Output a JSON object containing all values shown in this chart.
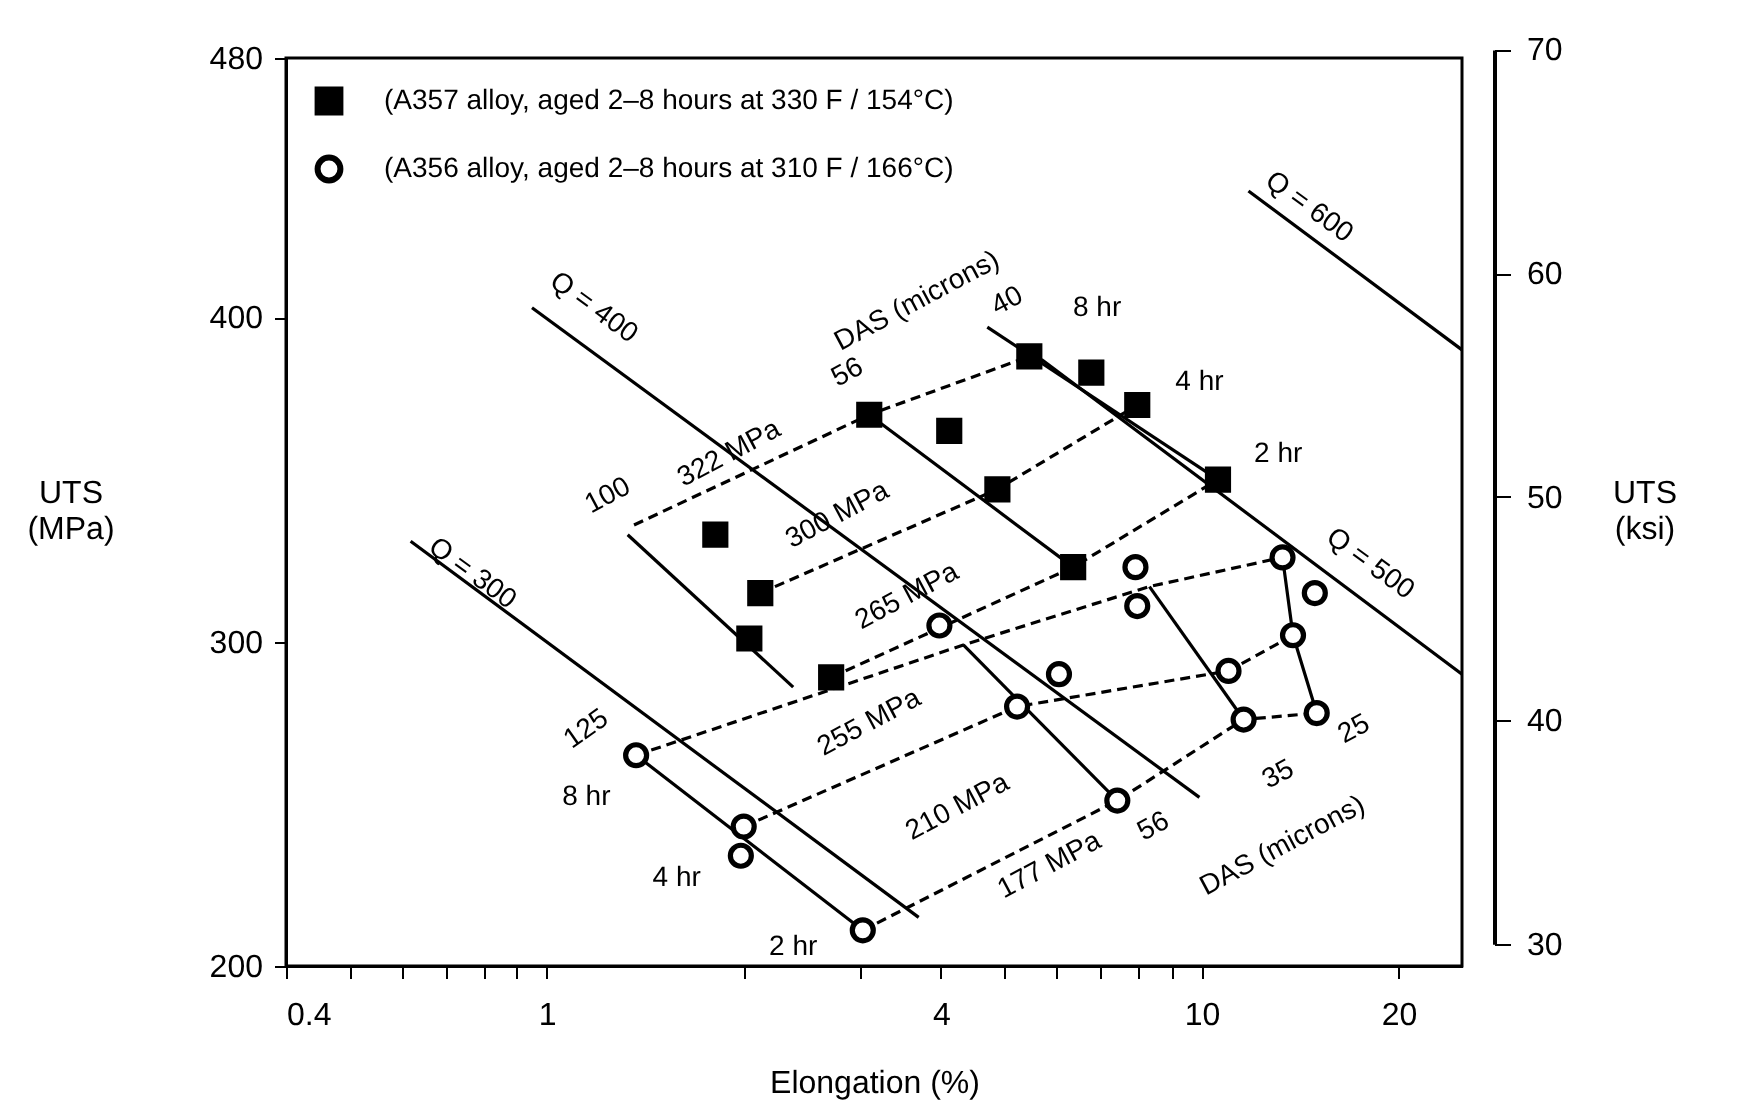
{
  "chart_data": {
    "type": "scatter",
    "xlabel": "Elongation (%)",
    "ylabel": "UTS (MPa)",
    "y2label": "UTS (ksi)",
    "log": "x",
    "grid": false,
    "legend": "top left",
    "xlim": [
      0.4,
      25
    ],
    "xticks": [
      0.4,
      {
        "value": 0.5,
        "label": null
      },
      {
        "value": 0.6,
        "label": null
      },
      {
        "value": 0.7,
        "label": null
      },
      {
        "value": 0.8,
        "label": null
      },
      {
        "value": 0.9,
        "label": null
      },
      1,
      {
        "value": 2,
        "label": null
      },
      {
        "value": 3,
        "label": null
      },
      4,
      {
        "value": 5,
        "label": null
      },
      {
        "value": 6,
        "label": null
      },
      {
        "value": 7,
        "label": null
      },
      {
        "value": 8,
        "label": null
      },
      {
        "value": 9,
        "label": null
      },
      10,
      20
    ],
    "ylim": [
      200,
      480
    ],
    "yticks": [
      200,
      300,
      400,
      480
    ],
    "y2lim": [
      30,
      70
    ],
    "y2ticks": [
      30,
      40,
      50,
      60,
      70
    ],
    "series": [
      {
        "name": "(A357 alloy, aged 2–8 hours at 330 F / 154°C)",
        "marker": "square",
        "color": "#000000",
        "x": [
          3.11,
          4.12,
          4.88,
          1.81,
          2.12,
          2.04,
          2.72,
          5.46,
          6.79,
          7.98,
          10.6,
          6.37
        ],
        "values": [
          370,
          365,
          347,
          333,
          315,
          301,
          289,
          388,
          383,
          373,
          350,
          323
        ]
      },
      {
        "name": "(A356 alloy, aged 2–8 hours at 310 F / 166°C)",
        "marker": "circle",
        "color": "#000000",
        "x": [
          1.37,
          2.0,
          1.98,
          3.04,
          3.98,
          5.23,
          6.06,
          7.44,
          7.93,
          7.98,
          11.0,
          11.6,
          13.3,
          14.9,
          13.8,
          15.0
        ],
        "values": [
          265,
          243,
          234,
          211,
          305,
          280,
          290,
          251,
          323,
          311,
          291,
          276,
          326,
          315,
          302,
          278
        ]
      },
      {
        "type": "line",
        "line_style": "solid",
        "color": "#000000",
        "x": [
          0.62,
          3.7
        ],
        "values": [
          331,
          215
        ]
      },
      {
        "type": "line",
        "line_style": "solid",
        "color": "#000000",
        "x": [
          0.95,
          9.93
        ],
        "values": [
          403,
          252
        ]
      },
      {
        "type": "line",
        "line_style": "solid",
        "color": "#000000",
        "x": [
          5.7,
          25
        ],
        "values": [
          387,
          290
        ]
      },
      {
        "type": "line",
        "line_style": "solid",
        "color": "#000000",
        "x": [
          11.8,
          25
        ],
        "values": [
          439,
          390
        ]
      },
      {
        "type": "line",
        "line_style": "solid",
        "color": "#000000",
        "x": [
          1.33,
          2.38
        ],
        "values": [
          333,
          286
        ]
      },
      {
        "type": "line",
        "line_style": "solid",
        "color": "#000000",
        "x": [
          3.11,
          6.37
        ],
        "values": [
          370,
          323
        ]
      },
      {
        "type": "line",
        "line_style": "solid",
        "color": "#000000",
        "x": [
          4.71,
          10.6
        ],
        "values": [
          397,
          350
        ]
      },
      {
        "type": "line",
        "line_style": "solid",
        "color": "#000000",
        "x": [
          1.37,
          3.04
        ],
        "values": [
          265,
          211
        ]
      },
      {
        "type": "line",
        "line_style": "solid",
        "color": "#000000",
        "x": [
          4.33,
          7.44
        ],
        "values": [
          299,
          251
        ]
      },
      {
        "type": "line",
        "line_style": "solid",
        "color": "#000000",
        "x": [
          8.33,
          11.6
        ],
        "values": [
          317,
          276
        ]
      },
      {
        "type": "line",
        "line_style": "solid",
        "color": "#000000",
        "x": [
          13.3,
          13.8,
          15.0
        ],
        "values": [
          326,
          302,
          278
        ]
      },
      {
        "type": "line",
        "line_style": "dashed",
        "color": "#000000",
        "x": [
          1.36,
          3.11,
          5.46
        ],
        "values": [
          336,
          370,
          388
        ]
      },
      {
        "type": "line",
        "line_style": "dashed",
        "color": "#000000",
        "x": [
          2.12,
          4.88,
          7.98
        ],
        "values": [
          315,
          347,
          373
        ]
      },
      {
        "type": "line",
        "line_style": "dashed",
        "color": "#000000",
        "x": [
          2.72,
          6.37,
          10.6
        ],
        "values": [
          289,
          323,
          350
        ]
      },
      {
        "type": "line",
        "line_style": "dashed",
        "color": "#000000",
        "x": [
          1.37,
          4.33,
          8.33,
          13.3
        ],
        "values": [
          265,
          299,
          317,
          326
        ]
      },
      {
        "type": "line",
        "line_style": "dashed",
        "color": "#000000",
        "x": [
          2.0,
          5.23,
          11.0,
          13.8
        ],
        "values": [
          243,
          280,
          291,
          302
        ]
      },
      {
        "type": "line",
        "line_style": "dashed",
        "color": "#000000",
        "x": [
          3.04,
          7.44,
          11.6,
          15.0
        ],
        "values": [
          211,
          251,
          276,
          278
        ]
      }
    ],
    "annotations": [
      "Q = 400",
      "Q = 300",
      "Q = 500",
      "Q = 600",
      "DAS (microns)",
      "40",
      "56",
      "100",
      "322 MPa",
      "300 MPa",
      "265 MPa",
      "255 MPa",
      "210 MPa",
      "177 MPa",
      "125",
      "56",
      "35",
      "25",
      "DAS (microns)",
      "8 hr",
      "4 hr",
      "2 hr",
      "8 hr",
      "4 hr",
      "2 hr"
    ]
  }
}
